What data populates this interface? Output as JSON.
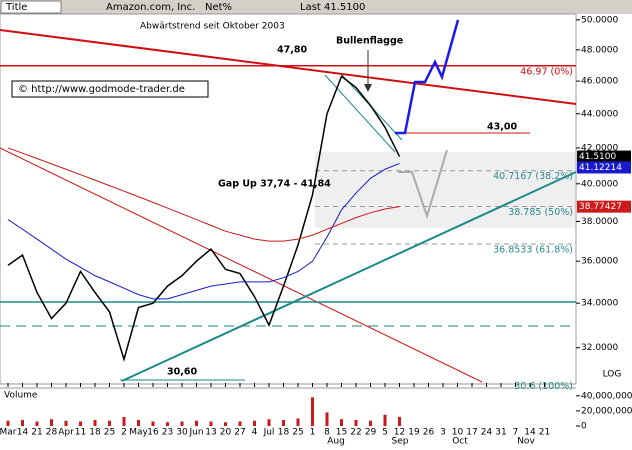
{
  "header": {
    "title": "Title",
    "mode": "Net%",
    "last": "Last 41.5100"
  },
  "annotations": [
    "Abwärtstrend seit Oktober 2003",
    "47,80",
    "Bullenflagge",
    "43,00",
    "Gap Up 37,74 - 41,84",
    "30,60",
    "© http://www.godmode-trader.de"
  ],
  "month_labels": [
    "Aug",
    "Sep",
    "Oct",
    "Nov"
  ],
  "scale_label": "LOG",
  "chart_data": [
    {
      "type": "line",
      "log": true,
      "categories": [
        "Mar",
        "14",
        "21",
        "28",
        "Apr",
        "11",
        "18",
        "25",
        "2",
        "May",
        "16",
        "23",
        "30",
        "Jun",
        "13",
        "20",
        "27",
        "4",
        "Jul",
        "18",
        "25",
        "1",
        "8",
        "15",
        "22",
        "29",
        "5",
        "12",
        "19",
        "26",
        "3",
        "10",
        "17",
        "24",
        "31",
        "7",
        "14",
        "21"
      ],
      "series": [
        {
          "name": "Amazon.com, Inc.",
          "color": "#000000",
          "last_label": "41.5100",
          "values": [
            35.8,
            36.3,
            34.5,
            33.3,
            34,
            35.5,
            34.5,
            33.6,
            31.5,
            33.8,
            34,
            34.8,
            35.3,
            36,
            36.6,
            35.6,
            35.4,
            34.3,
            33,
            34.8,
            36.8,
            39.4,
            44,
            46.3,
            45.6,
            44.5,
            43.2,
            41.51,
            null,
            null,
            null,
            null,
            null,
            null,
            null,
            null,
            null,
            null
          ]
        },
        {
          "color": "#1a1acc",
          "last_label": "41.12214",
          "values": [
            38.1,
            37.6,
            37.1,
            36.6,
            36.1,
            35.7,
            35.3,
            35,
            34.7,
            34.4,
            34.2,
            34.2,
            34.4,
            34.6,
            34.8,
            34.9,
            35,
            35,
            35,
            35.2,
            35.5,
            36,
            37.2,
            38.6,
            39.5,
            40.3,
            40.8,
            41.12214,
            null,
            null,
            null,
            null,
            null,
            null,
            null,
            null,
            null,
            null
          ]
        },
        {
          "color": "#cc1a1a",
          "last_label": "38.77427",
          "values": [
            42,
            41.7,
            41.4,
            41.1,
            40.8,
            40.5,
            40.2,
            39.9,
            39.6,
            39.3,
            39,
            38.7,
            38.4,
            38.1,
            37.8,
            37.5,
            37.3,
            37.1,
            37,
            37,
            37.1,
            37.3,
            37.6,
            37.9,
            38.2,
            38.45,
            38.65,
            38.77427,
            null,
            null,
            null,
            null,
            null,
            null,
            null,
            null,
            null,
            null
          ]
        }
      ],
      "ylim": [
        30.5,
        50.4
      ],
      "yticks": [
        {
          "value": 32,
          "label": "32.0000"
        },
        {
          "value": 34,
          "label": "34.0000"
        },
        {
          "value": 36,
          "label": "36.0000"
        },
        {
          "value": 38,
          "label": "38.0000"
        },
        {
          "value": 40,
          "label": "40.0000"
        },
        {
          "value": 42,
          "label": "42.0000"
        },
        {
          "value": 44,
          "label": "44.0000"
        },
        {
          "value": 46,
          "label": "46.0000"
        },
        {
          "value": 48,
          "label": "48.0000"
        },
        {
          "value": 50,
          "label": "50.0000"
        }
      ],
      "levels": [
        {
          "value": 46.97,
          "label": "46.97 (0%)"
        },
        {
          "value": 40.7167,
          "label": "40.7167 (38.2%)"
        },
        {
          "value": 38.785,
          "label": "38.785 (50%)"
        },
        {
          "value": 36.8533,
          "label": "36.8533 (61.8%)"
        },
        {
          "value": 30.6,
          "label": "30.6 (100%)"
        }
      ]
    },
    {
      "type": "bar",
      "title": "Volume",
      "color": "#cc1a1a",
      "values": [
        7000000,
        8000000,
        6000000,
        9000000,
        7000000,
        6000000,
        8000000,
        7000000,
        12000000,
        8000000,
        6000000,
        5000000,
        6000000,
        7000000,
        6000000,
        5000000,
        6000000,
        7000000,
        9000000,
        8000000,
        10000000,
        38000000,
        18000000,
        9000000,
        8000000,
        7000000,
        15000000,
        12000000
      ],
      "ylim": [
        0,
        45000000
      ],
      "yticks": [
        0,
        {
          "value": 20000000,
          "label": "20,000,000"
        },
        {
          "value": 40000000,
          "label": "40,000,000"
        }
      ]
    }
  ]
}
